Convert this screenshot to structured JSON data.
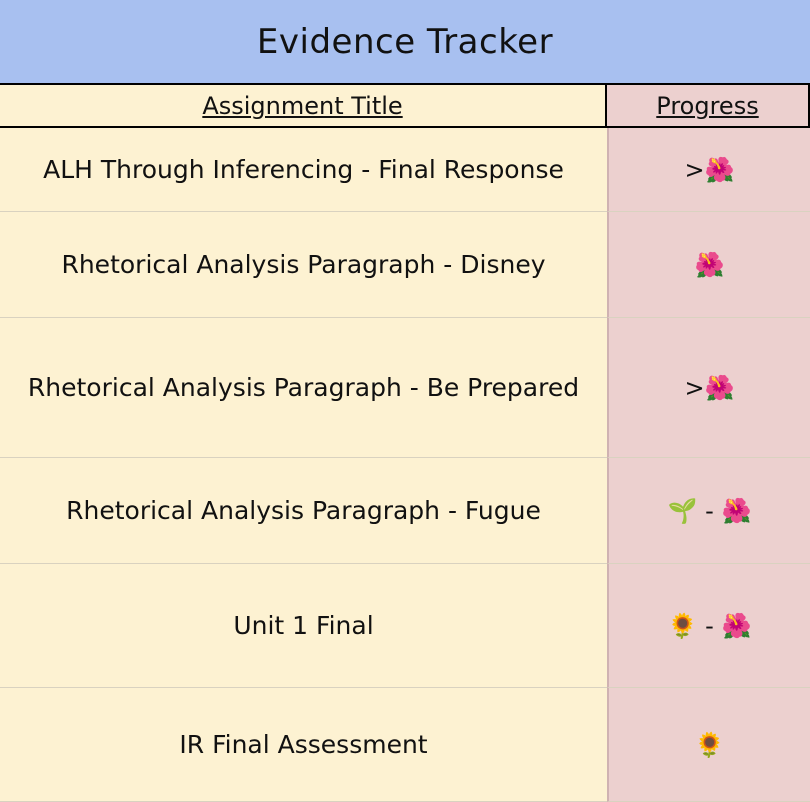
{
  "sheet": {
    "title": "Evidence Tracker",
    "headers": {
      "assignment": "Assignment Title",
      "progress": "Progress"
    },
    "rows": [
      {
        "assignment": "ALH Through Inferencing - Final Response",
        "progress": ">🌺"
      },
      {
        "assignment": "Rhetorical Analysis Paragraph - Disney",
        "progress": "🌺"
      },
      {
        "assignment": "Rhetorical Analysis Paragraph - Be Prepared",
        "progress": ">🌺"
      },
      {
        "assignment": "Rhetorical Analysis Paragraph - Fugue",
        "progress": "🌱 - 🌺"
      },
      {
        "assignment": "Unit 1 Final",
        "progress": "🌻 - 🌺"
      },
      {
        "assignment": "IR Final Assessment",
        "progress": "🌻"
      }
    ]
  }
}
